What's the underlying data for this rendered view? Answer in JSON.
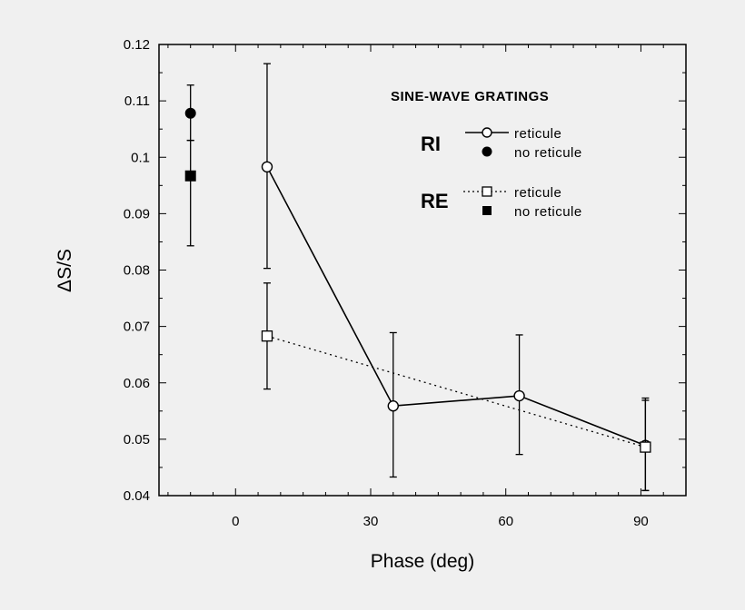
{
  "chart_data": {
    "type": "line",
    "xlabel": "Phase (deg)",
    "ylabel": "ΔS/S",
    "xlim": [
      -17,
      100
    ],
    "ylim": [
      0.04,
      0.12
    ],
    "xticks": [
      "0",
      "30",
      "60",
      "90"
    ],
    "yticks": [
      "0.04",
      "0.05",
      "0.06",
      "0.07",
      "0.08",
      "0.09",
      "0.1",
      "0.11",
      "0.12"
    ],
    "legend": {
      "title": "SINE-WAVE GRATINGS",
      "placement": "top-right",
      "groups": [
        {
          "label": "RI",
          "entries": [
            "reticule",
            "no reticule"
          ]
        },
        {
          "label": "RE",
          "entries": [
            "reticule",
            "no reticule"
          ]
        }
      ]
    },
    "series": [
      {
        "name": "RI reticule",
        "marker": "open-circle",
        "line": "solid",
        "x": [
          7,
          35,
          63,
          91
        ],
        "y": [
          0.0983,
          0.0559,
          0.0577,
          0.0489
        ],
        "err_low": [
          0.0803,
          0.0433,
          0.0473,
          0.0409
        ],
        "err_high": [
          0.1166,
          0.0689,
          0.0685,
          0.0573
        ]
      },
      {
        "name": "RE reticule",
        "marker": "open-square",
        "line": "dotted",
        "x": [
          7,
          91
        ],
        "y": [
          0.0683,
          0.0486
        ],
        "err_low": [
          0.0589,
          0.0409
        ],
        "err_high": [
          0.0777,
          0.0569
        ]
      },
      {
        "name": "RI no reticule",
        "marker": "filled-circle",
        "line": "none",
        "x": [
          -10
        ],
        "y": [
          0.1078
        ],
        "err_low": [
          0.103
        ],
        "err_high": [
          0.1128
        ]
      },
      {
        "name": "RE no reticule",
        "marker": "filled-square",
        "line": "none",
        "x": [
          -10
        ],
        "y": [
          0.0967
        ],
        "err_low": [
          0.0843
        ],
        "err_high": [
          0.103
        ]
      }
    ]
  }
}
